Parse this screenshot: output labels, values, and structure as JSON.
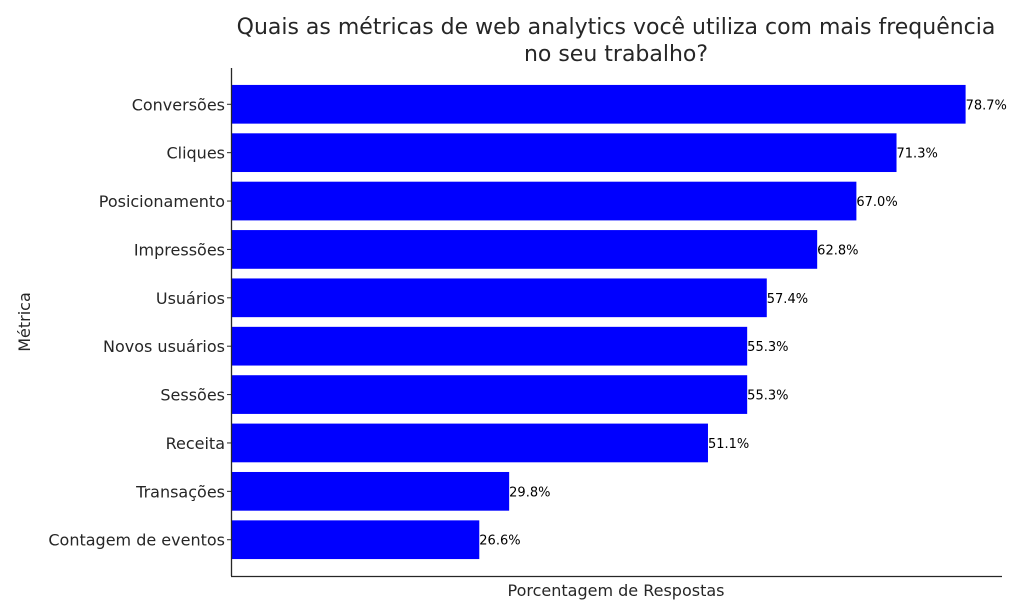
{
  "chart_data": {
    "type": "bar",
    "orientation": "horizontal",
    "title": "Quais as métricas de web analytics você utiliza com mais frequência no seu trabalho?",
    "title_lines": [
      "Quais as métricas de web analytics você utiliza com mais frequência",
      "no seu trabalho?"
    ],
    "xlabel": "Porcentagem de Respostas",
    "ylabel": "Métrica",
    "xlim": [
      0,
      82.6
    ],
    "grid": false,
    "bar_color": "#0000ff",
    "categories": [
      "Conversões",
      "Cliques",
      "Posicionamento",
      "Impressões",
      "Usuários",
      "Novos usuários",
      "Sessões",
      "Receita",
      "Transações",
      "Contagem de eventos"
    ],
    "values": [
      78.7,
      71.3,
      67.0,
      62.8,
      57.4,
      55.3,
      55.3,
      51.1,
      29.8,
      26.6
    ],
    "value_labels": [
      "78.7%",
      "71.3%",
      "67.0%",
      "62.8%",
      "57.4%",
      "55.3%",
      "55.3%",
      "51.1%",
      "29.8%",
      "26.6%"
    ]
  }
}
